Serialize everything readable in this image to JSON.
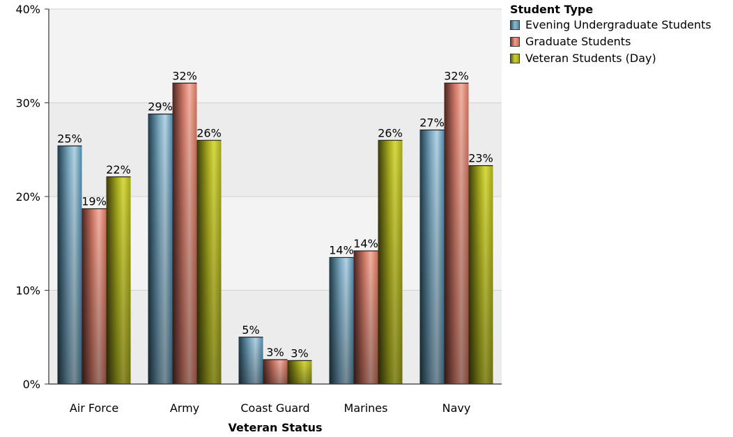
{
  "chart_data": {
    "type": "bar",
    "xlabel": "Veteran Status",
    "ylabel": "",
    "ylim": [
      0,
      40
    ],
    "yticks": [
      0,
      10,
      20,
      30,
      40
    ],
    "ytick_labels": [
      "0%",
      "10%",
      "20%",
      "30%",
      "40%"
    ],
    "categories": [
      "Air Force",
      "Army",
      "Coast Guard",
      "Marines",
      "Navy"
    ],
    "legend_title": "Student Type",
    "legend_position": "top-right",
    "series": [
      {
        "name": "Evening Undergraduate Students",
        "color": "#4a8fb0",
        "values": [
          25.4,
          28.8,
          5.0,
          13.5,
          27.1
        ],
        "labels": [
          "25%",
          "29%",
          "5%",
          "14%",
          "27%"
        ]
      },
      {
        "name": "Graduate Students",
        "color": "#e07f6c",
        "values": [
          18.7,
          32.1,
          2.6,
          14.2,
          32.1
        ],
        "labels": [
          "19%",
          "32%",
          "3%",
          "14%",
          "32%"
        ]
      },
      {
        "name": "Veteran Students (Day)",
        "color": "#b8bc20",
        "values": [
          22.1,
          26.0,
          2.5,
          26.0,
          23.3
        ],
        "labels": [
          "22%",
          "26%",
          "3%",
          "26%",
          "23%"
        ]
      }
    ]
  }
}
